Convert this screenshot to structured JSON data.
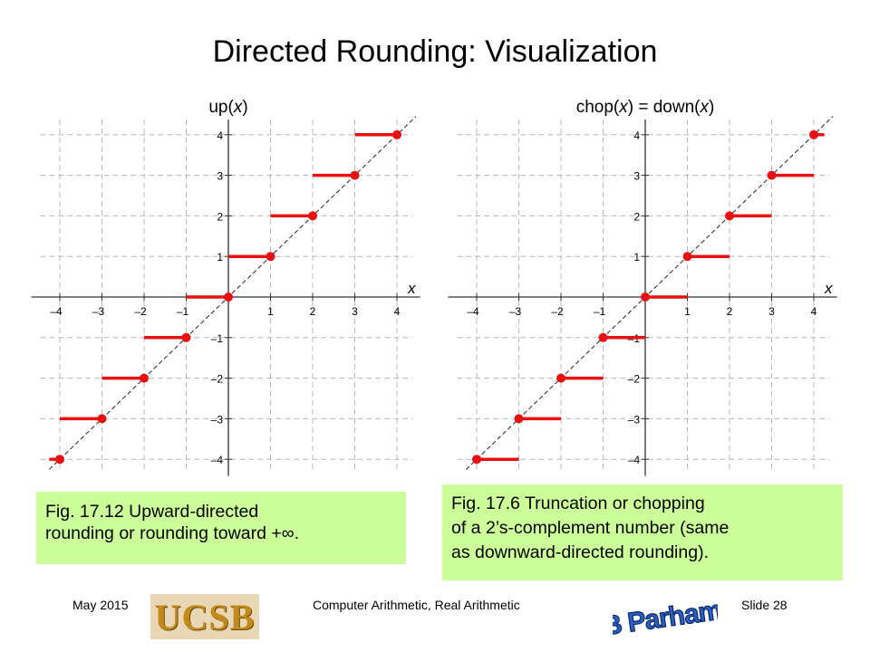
{
  "slide": {
    "title": "Directed Rounding: Visualization"
  },
  "chart_data": [
    {
      "type": "line",
      "title_fn": "up",
      "title_arg": "x",
      "title_tail": "",
      "xlabel": "x",
      "x_ticks": [
        -4,
        -3,
        -2,
        -1,
        1,
        2,
        3,
        4
      ],
      "y_ticks": [
        -4,
        -3,
        -2,
        -1,
        1,
        2,
        3,
        4
      ],
      "x_tick_labels": [
        "–4",
        "–3",
        "–2",
        "–1",
        "1",
        "2",
        "3",
        "4"
      ],
      "y_tick_labels": [
        "–4",
        "–3",
        "–2",
        "–1",
        "1",
        "2",
        "3",
        "4"
      ],
      "xlim": [
        -4.25,
        4.25
      ],
      "ylim": [
        -4.1,
        4.2
      ],
      "grid": true,
      "reference_line": "y = x (dashed)",
      "segments": [
        {
          "x_from": -4.25,
          "x_to": -4,
          "y": -4,
          "closed_end": "right"
        },
        {
          "x_from": -4,
          "x_to": -3,
          "y": -3,
          "closed_end": "right"
        },
        {
          "x_from": -3,
          "x_to": -2,
          "y": -2,
          "closed_end": "right"
        },
        {
          "x_from": -2,
          "x_to": -1,
          "y": -1,
          "closed_end": "right"
        },
        {
          "x_from": -1,
          "x_to": 0,
          "y": 0,
          "closed_end": "right"
        },
        {
          "x_from": 0,
          "x_to": 1,
          "y": 1,
          "closed_end": "right"
        },
        {
          "x_from": 1,
          "x_to": 2,
          "y": 2,
          "closed_end": "right"
        },
        {
          "x_from": 2,
          "x_to": 3,
          "y": 3,
          "closed_end": "right"
        },
        {
          "x_from": 3,
          "x_to": 4,
          "y": 4,
          "closed_end": "right"
        }
      ],
      "line_color": "#e81010"
    },
    {
      "type": "line",
      "title_fn": "chop",
      "title_arg": "x",
      "title_tail": "down",
      "xlabel": "x",
      "x_ticks": [
        -4,
        -3,
        -2,
        -1,
        1,
        2,
        3,
        4
      ],
      "y_ticks": [
        -4,
        -3,
        -2,
        -1,
        1,
        2,
        3,
        4
      ],
      "x_tick_labels": [
        "–4",
        "–3",
        "–2",
        "–1",
        "1",
        "2",
        "3",
        "4"
      ],
      "y_tick_labels": [
        "–4",
        "–3",
        "–2",
        "–1",
        "1",
        "2",
        "3",
        "4"
      ],
      "xlim": [
        -4.25,
        4.25
      ],
      "ylim": [
        -4.1,
        4.2
      ],
      "grid": true,
      "reference_line": "y = x (dashed)",
      "segments": [
        {
          "x_from": -4,
          "x_to": -3,
          "y": -4,
          "closed_end": "left"
        },
        {
          "x_from": -3,
          "x_to": -2,
          "y": -3,
          "closed_end": "left"
        },
        {
          "x_from": -2,
          "x_to": -1,
          "y": -2,
          "closed_end": "left"
        },
        {
          "x_from": -1,
          "x_to": 0,
          "y": -1,
          "closed_end": "left"
        },
        {
          "x_from": 0,
          "x_to": 1,
          "y": 0,
          "closed_end": "left"
        },
        {
          "x_from": 1,
          "x_to": 2,
          "y": 1,
          "closed_end": "left"
        },
        {
          "x_from": 2,
          "x_to": 3,
          "y": 2,
          "closed_end": "left"
        },
        {
          "x_from": 3,
          "x_to": 4,
          "y": 3,
          "closed_end": "left"
        },
        {
          "x_from": 4,
          "x_to": 4.25,
          "y": 4,
          "closed_end": "left"
        }
      ],
      "line_color": "#e81010"
    }
  ],
  "captions": {
    "left": {
      "line1": "Fig. 17.12    Upward-directed",
      "line2": "rounding or rounding toward +∞."
    },
    "right": {
      "line1": "Fig. 17.6    Truncation or chopping",
      "line2": "of a 2’s-complement number (same",
      "line3": "as downward-directed rounding)."
    }
  },
  "footer": {
    "date": "May 2015",
    "course": "Computer Arithmetic, Real Arithmetic",
    "slide": "Slide 28",
    "logo_left_text": "UCSB",
    "logo_right_text": "B Parhami"
  },
  "colors": {
    "caption_bg": "#ccff99",
    "step_red": "#e81010",
    "grid": "#b8b8b8"
  }
}
